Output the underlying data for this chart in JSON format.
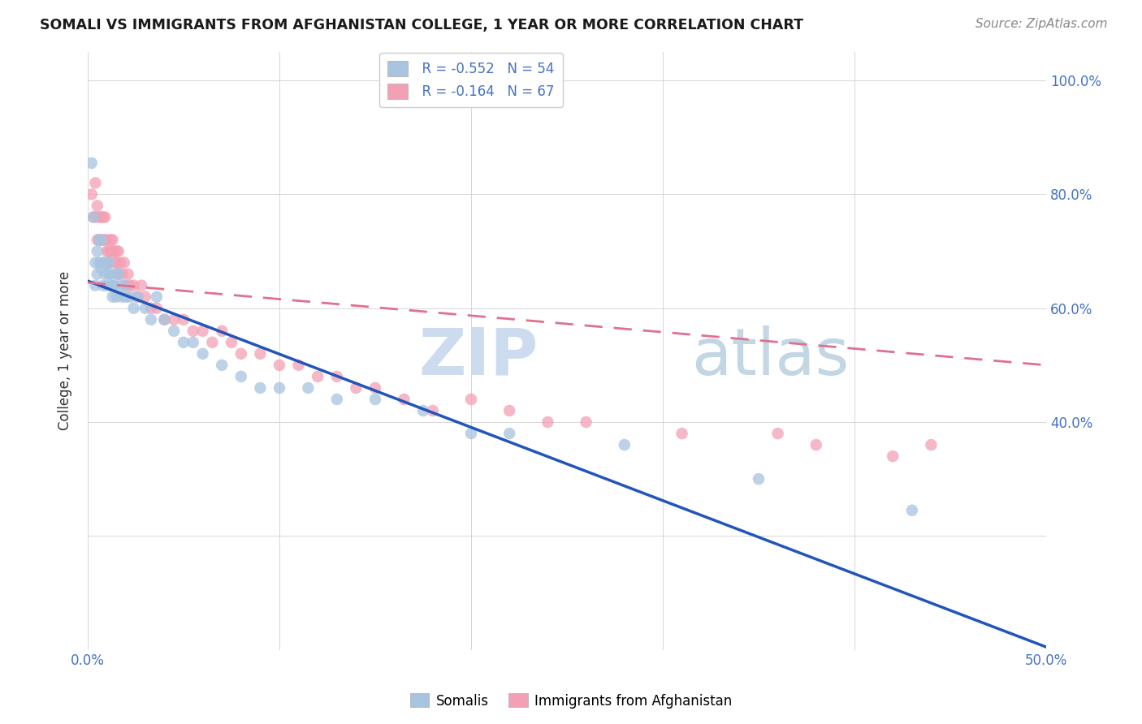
{
  "title": "SOMALI VS IMMIGRANTS FROM AFGHANISTAN COLLEGE, 1 YEAR OR MORE CORRELATION CHART",
  "source": "Source: ZipAtlas.com",
  "ylabel": "College, 1 year or more",
  "somali_color": "#a8c4e0",
  "afghanistan_color": "#f4a0b4",
  "somali_line_color": "#2255bb",
  "afghanistan_line_color": "#e07090",
  "legend_r1": "R = -0.552",
  "legend_n1": "N = 54",
  "legend_r2": "R = -0.164",
  "legend_n2": "N = 67",
  "xlim": [
    0.0,
    0.5
  ],
  "ylim": [
    0.0,
    1.05
  ],
  "somali_line_x0": 0.0,
  "somali_line_y0": 0.648,
  "somali_line_x1": 0.5,
  "somali_line_y1": 0.005,
  "afghan_line_x0": 0.0,
  "afghan_line_y0": 0.645,
  "afghan_line_x1": 0.5,
  "afghan_line_y1": 0.5,
  "somali_x": [
    0.002,
    0.003,
    0.004,
    0.004,
    0.005,
    0.005,
    0.006,
    0.006,
    0.007,
    0.007,
    0.008,
    0.008,
    0.009,
    0.009,
    0.01,
    0.01,
    0.011,
    0.011,
    0.012,
    0.012,
    0.013,
    0.013,
    0.014,
    0.015,
    0.015,
    0.016,
    0.017,
    0.018,
    0.019,
    0.02,
    0.022,
    0.024,
    0.026,
    0.03,
    0.033,
    0.036,
    0.04,
    0.045,
    0.05,
    0.055,
    0.06,
    0.07,
    0.08,
    0.09,
    0.1,
    0.115,
    0.13,
    0.15,
    0.175,
    0.2,
    0.22,
    0.28,
    0.35,
    0.43
  ],
  "somali_y": [
    0.855,
    0.76,
    0.68,
    0.64,
    0.66,
    0.7,
    0.68,
    0.72,
    0.67,
    0.72,
    0.68,
    0.64,
    0.66,
    0.68,
    0.64,
    0.68,
    0.68,
    0.66,
    0.64,
    0.66,
    0.64,
    0.62,
    0.64,
    0.66,
    0.62,
    0.66,
    0.64,
    0.62,
    0.64,
    0.62,
    0.62,
    0.6,
    0.62,
    0.6,
    0.58,
    0.62,
    0.58,
    0.56,
    0.54,
    0.54,
    0.52,
    0.5,
    0.48,
    0.46,
    0.46,
    0.46,
    0.44,
    0.44,
    0.42,
    0.38,
    0.38,
    0.36,
    0.3,
    0.245
  ],
  "afghanistan_x": [
    0.002,
    0.003,
    0.004,
    0.004,
    0.005,
    0.005,
    0.006,
    0.006,
    0.007,
    0.007,
    0.008,
    0.008,
    0.009,
    0.009,
    0.01,
    0.01,
    0.011,
    0.011,
    0.012,
    0.012,
    0.013,
    0.013,
    0.014,
    0.014,
    0.015,
    0.015,
    0.016,
    0.016,
    0.017,
    0.018,
    0.019,
    0.02,
    0.021,
    0.022,
    0.024,
    0.026,
    0.028,
    0.03,
    0.033,
    0.036,
    0.04,
    0.045,
    0.05,
    0.055,
    0.06,
    0.065,
    0.07,
    0.075,
    0.08,
    0.09,
    0.1,
    0.11,
    0.12,
    0.13,
    0.14,
    0.15,
    0.165,
    0.18,
    0.2,
    0.22,
    0.24,
    0.26,
    0.31,
    0.36,
    0.38,
    0.42,
    0.44
  ],
  "afghanistan_y": [
    0.8,
    0.76,
    0.82,
    0.76,
    0.72,
    0.78,
    0.72,
    0.76,
    0.72,
    0.76,
    0.72,
    0.76,
    0.72,
    0.76,
    0.72,
    0.7,
    0.7,
    0.68,
    0.7,
    0.72,
    0.7,
    0.72,
    0.7,
    0.68,
    0.7,
    0.68,
    0.7,
    0.66,
    0.68,
    0.66,
    0.68,
    0.64,
    0.66,
    0.64,
    0.64,
    0.62,
    0.64,
    0.62,
    0.6,
    0.6,
    0.58,
    0.58,
    0.58,
    0.56,
    0.56,
    0.54,
    0.56,
    0.54,
    0.52,
    0.52,
    0.5,
    0.5,
    0.48,
    0.48,
    0.46,
    0.46,
    0.44,
    0.42,
    0.44,
    0.42,
    0.4,
    0.4,
    0.38,
    0.38,
    0.36,
    0.34,
    0.36
  ]
}
